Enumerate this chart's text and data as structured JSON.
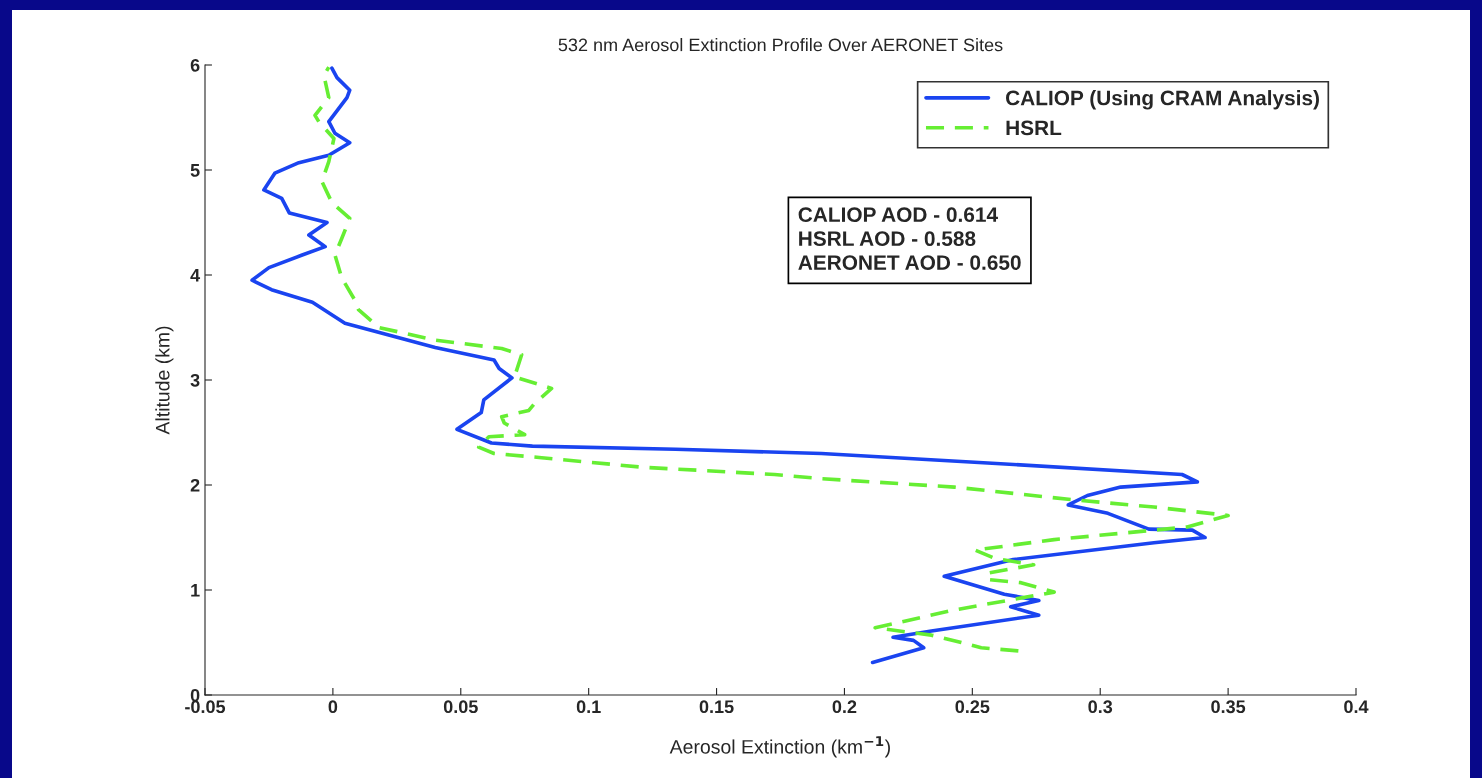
{
  "chart_data": {
    "type": "line",
    "title": "532 nm Aerosol Extinction Profile Over AERONET Sites",
    "xlabel": "Aerosol Extinction (km$^{−1}$)",
    "ylabel": "Altitude (km)",
    "xlim": [
      -0.05,
      0.4
    ],
    "xticks": [
      -0.05,
      0,
      0.05,
      0.1,
      0.15,
      0.2,
      0.25,
      0.3,
      0.35,
      0.4
    ],
    "ylim": [
      0,
      6
    ],
    "yticks": [
      0,
      1,
      2,
      3,
      4,
      5,
      6
    ],
    "grid": false,
    "legend": "top right",
    "marker": "none",
    "series": [
      {
        "name": "CALIOP (Using CRAM Analysis)",
        "color": "#1a44f0",
        "line_style": "solid",
        "x": [
          0.211,
          0.231,
          0.227,
          0.219,
          0.234,
          0.276,
          0.265,
          0.276,
          0.2625,
          0.239,
          0.266,
          0.321,
          0.341,
          0.336,
          0.319,
          0.303,
          0.2875,
          0.295,
          0.308,
          0.338,
          0.332,
          0.256,
          0.191,
          0.134,
          0.078,
          0.062,
          0.0485,
          0.058,
          0.059,
          0.07,
          0.065,
          0.063,
          0.04,
          0.0047,
          -0.008,
          -0.024,
          -0.0316,
          -0.025,
          -0.012,
          -0.003,
          -0.0094,
          -0.0023,
          -0.017,
          -0.02,
          -0.027,
          -0.0227,
          -0.0133,
          -0.0016,
          0.0066,
          0.0008,
          -0.0016,
          0.0055,
          0.0066,
          0.0016,
          -0.0004
        ],
        "values": [
          0.31,
          0.45,
          0.52,
          0.55,
          0.61,
          0.76,
          0.84,
          0.9,
          0.96,
          1.13,
          1.29,
          1.45,
          1.5,
          1.57,
          1.58,
          1.73,
          1.81,
          1.9,
          1.98,
          2.03,
          2.1,
          2.21,
          2.3,
          2.34,
          2.37,
          2.4,
          2.53,
          2.69,
          2.81,
          3.02,
          3.11,
          3.19,
          3.31,
          3.54,
          3.74,
          3.86,
          3.95,
          4.07,
          4.19,
          4.27,
          4.38,
          4.5,
          4.59,
          4.73,
          4.81,
          4.97,
          5.07,
          5.14,
          5.26,
          5.35,
          5.46,
          5.69,
          5.76,
          5.88,
          5.97
        ]
      },
      {
        "name": "HSRL",
        "color": "#66ee33",
        "line_style": "dashed",
        "x": [
          0.268,
          0.2535,
          0.2457,
          0.234,
          0.212,
          0.243,
          0.282,
          0.269,
          0.256,
          0.256,
          0.274,
          0.259,
          0.251,
          0.282,
          0.334,
          0.35,
          0.321,
          0.289,
          0.243,
          0.191,
          0.1727,
          0.1207,
          0.0816,
          0.063,
          0.057,
          0.061,
          0.075,
          0.067,
          0.066,
          0.0766,
          0.079,
          0.0855,
          0.071,
          0.0738,
          0.066,
          0.04,
          0.018,
          0.01,
          0.0086,
          0.0035,
          0.0008,
          0.0035,
          0.0066,
          -0.0004,
          -0.0043,
          -0.0016,
          0.0004,
          -0.0055,
          -0.007,
          -0.0016,
          -0.0035,
          -0.0016
        ],
        "values": [
          0.42,
          0.45,
          0.5,
          0.57,
          0.64,
          0.81,
          0.98,
          1.07,
          1.1,
          1.16,
          1.24,
          1.3,
          1.38,
          1.48,
          1.6,
          1.71,
          1.79,
          1.86,
          1.98,
          2.06,
          2.1,
          2.17,
          2.26,
          2.3,
          2.36,
          2.46,
          2.48,
          2.59,
          2.65,
          2.71,
          2.78,
          2.92,
          3.03,
          3.24,
          3.3,
          3.38,
          3.5,
          3.67,
          3.76,
          3.97,
          4.19,
          4.35,
          4.54,
          4.69,
          4.89,
          5.08,
          5.3,
          5.46,
          5.52,
          5.69,
          5.9,
          5.98
        ]
      }
    ],
    "annotations": [
      "CALIOP AOD - 0.614\nHSRL AOD - 0.588\nAERONET AOD - 0.650"
    ]
  }
}
